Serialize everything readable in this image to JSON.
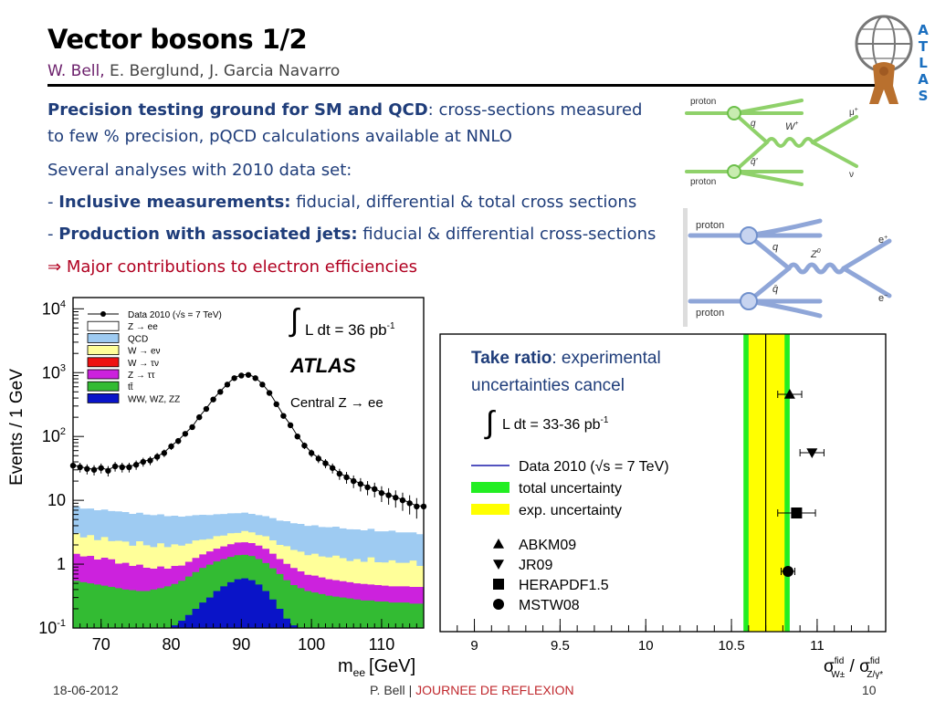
{
  "slide": {
    "title": "Vector bosons 1/2",
    "author_primary": "W. Bell,",
    "author_others": "E. Berglund, J. Garcia Navarro",
    "intro_bold": "Precision testing ground for SM and QCD",
    "intro_rest": ": cross-sections measured",
    "intro_line2": "to few % precision, pQCD calculations available at NNLO",
    "line_several": "Several analyses with 2010 data set:",
    "bullet1_dash": "- ",
    "bullet1_bold": "Inclusive measurements:",
    "bullet1_rest": " fiducial, differential & total cross sections",
    "bullet2_dash": "- ",
    "bullet2_bold": "Production with associated jets:",
    "bullet2_rest": " fiducial & differential cross-sections",
    "arrow_symbol": "⇒",
    "conclusion": "Major contributions to electron efficiencies",
    "footer_date": "18-06-2012",
    "footer_author": "P. Bell",
    "footer_sep": "|",
    "footer_event": "JOURNEE DE REFLEXION",
    "footer_page": "10",
    "logo_letters": [
      "A",
      "T",
      "L",
      "A",
      "S"
    ]
  },
  "diagram_w": {
    "proton_top": "proton",
    "proton_bottom": "proton",
    "quark": "q",
    "antiquark": "q̄'",
    "boson": "W",
    "boson_sup": "+",
    "lepton": "μ",
    "lepton_sup": "+",
    "neutrino": "ν"
  },
  "diagram_z": {
    "proton_top": "proton",
    "proton_bottom": "proton",
    "quark": "q",
    "antiquark": "q̄",
    "boson": "Z",
    "boson_sup": "0",
    "lepton_top": "e",
    "lepton_top_sup": "+",
    "lepton_bottom": "e",
    "lepton_bottom_sup": "−"
  },
  "chart_data": [
    {
      "type": "line",
      "ylabel": "Events / 1 GeV",
      "xlabel": "m",
      "xlabel_sub": "ee",
      "xlabel_unit": "[GeV]",
      "xlim": [
        66,
        116
      ],
      "ylim": [
        0.1,
        15000
      ],
      "log_y": true,
      "x_ticks": [
        "70",
        "80",
        "90",
        "100",
        "110"
      ],
      "x_tick_values": [
        70,
        80,
        90,
        100,
        110
      ],
      "y_ticks": [
        {
          "base": "10",
          "exp": "4",
          "value": 10000
        },
        {
          "base": "10",
          "exp": "3",
          "value": 1000
        },
        {
          "base": "10",
          "exp": "2",
          "value": 100
        },
        {
          "base": "10",
          "exp": "",
          "value": 10
        },
        {
          "base": "1",
          "exp": "",
          "value": 1
        },
        {
          "base": "10",
          "exp": "-1",
          "value": 0.1
        }
      ],
      "legend": [
        {
          "label": "Data 2010 (√s = 7 TeV)",
          "style": "marker"
        },
        {
          "label": "Z → ee",
          "color": "#ffffff"
        },
        {
          "label": "QCD",
          "color": "#9ecbf2"
        },
        {
          "label": "W → eν",
          "color": "#ffff99"
        },
        {
          "label": "W → τν",
          "color": "#ee1111"
        },
        {
          "label": "Z → ττ",
          "color": "#cc22dd"
        },
        {
          "label": "tt̄",
          "color": "#33bb33"
        },
        {
          "label": "WW, WZ, ZZ",
          "color": "#0a14c8"
        }
      ],
      "lumi_label": "L dt = 36 pb",
      "lumi_sup": "-1",
      "experiment": "ATLAS",
      "channel": "Central Z → ee",
      "x": [
        66,
        67,
        68,
        69,
        70,
        71,
        72,
        73,
        74,
        75,
        76,
        77,
        78,
        79,
        80,
        81,
        82,
        83,
        84,
        85,
        86,
        87,
        88,
        89,
        90,
        91,
        92,
        93,
        94,
        95,
        96,
        97,
        98,
        99,
        100,
        101,
        102,
        103,
        104,
        105,
        106,
        107,
        108,
        109,
        110,
        111,
        112,
        113,
        114,
        115,
        116
      ],
      "data_y": [
        35,
        33,
        31,
        30,
        32,
        29,
        34,
        33,
        33,
        36,
        40,
        42,
        48,
        55,
        70,
        85,
        110,
        140,
        200,
        270,
        380,
        500,
        650,
        820,
        900,
        920,
        820,
        650,
        480,
        320,
        210,
        150,
        100,
        72,
        55,
        45,
        38,
        32,
        26,
        23,
        20,
        18,
        16,
        15,
        13,
        12,
        11,
        10,
        9,
        8,
        8
      ],
      "qcd_level": [
        5,
        4.8,
        4.6,
        4.6,
        4.5,
        4.5,
        4.4,
        4.3,
        4.2,
        4.1,
        4.0,
        4.0,
        3.9,
        3.8,
        3.7,
        3.6,
        3.6,
        3.5,
        3.5,
        3.4,
        3.3,
        3.3,
        3.2,
        3.2,
        3.1,
        3.0,
        3.0,
        2.9,
        2.9,
        2.8,
        2.8,
        2.7,
        2.7,
        2.6,
        2.6,
        2.5,
        2.5,
        2.5,
        2.4,
        2.4,
        2.3,
        2.3,
        2.3,
        2.2,
        2.2,
        2.2,
        2.1,
        2.1,
        2.0,
        2.0,
        2.0
      ],
      "wenu_level": [
        1.6,
        1.3,
        1.5,
        1.2,
        1.4,
        1.1,
        1.3,
        1.2,
        1.0,
        1.3,
        1.1,
        1.0,
        1.2,
        1.0,
        1.1,
        1.0,
        1.0,
        1.1,
        1.0,
        0.9,
        1.0,
        0.9,
        1.0,
        0.9,
        1.1,
        1.0,
        0.9,
        1.0,
        0.9,
        0.8,
        0.9,
        0.8,
        0.8,
        0.7,
        0.8,
        0.7,
        0.7,
        0.8,
        0.7,
        0.6,
        0.7,
        0.6,
        0.8,
        0.6,
        0.6,
        0.7,
        0.6,
        0.6,
        0.7,
        0.5,
        0.6
      ],
      "ztautau_level": [
        0.9,
        0.8,
        0.85,
        0.7,
        0.8,
        0.75,
        0.6,
        0.65,
        0.55,
        0.6,
        0.5,
        0.45,
        0.5,
        0.4,
        0.45,
        0.4,
        0.45,
        0.5,
        0.55,
        0.6,
        0.65,
        0.7,
        0.75,
        0.8,
        0.8,
        0.8,
        0.75,
        0.7,
        0.6,
        0.5,
        0.45,
        0.4,
        0.35,
        0.3,
        0.3,
        0.28,
        0.26,
        0.25,
        0.24,
        0.23,
        0.22,
        0.22,
        0.21,
        0.21,
        0.2,
        0.2,
        0.2,
        0.2,
        0.2,
        0.2,
        0.2
      ],
      "ttbar_level": [
        0.45,
        0.42,
        0.4,
        0.38,
        0.36,
        0.34,
        0.32,
        0.3,
        0.29,
        0.28,
        0.28,
        0.3,
        0.32,
        0.35,
        0.38,
        0.42,
        0.48,
        0.55,
        0.62,
        0.68,
        0.72,
        0.75,
        0.78,
        0.8,
        0.8,
        0.78,
        0.72,
        0.66,
        0.58,
        0.5,
        0.42,
        0.36,
        0.32,
        0.28,
        0.26,
        0.24,
        0.22,
        0.21,
        0.2,
        0.19,
        0.18,
        0.17,
        0.17,
        0.16,
        0.16,
        0.15,
        0.15,
        0.15,
        0.14,
        0.14,
        0.14
      ],
      "diboson_level": [
        0.1,
        0.1,
        0.1,
        0.1,
        0.1,
        0.1,
        0.1,
        0.1,
        0.1,
        0.1,
        0.1,
        0.1,
        0.1,
        0.1,
        0.11,
        0.13,
        0.16,
        0.2,
        0.25,
        0.3,
        0.38,
        0.45,
        0.52,
        0.58,
        0.6,
        0.56,
        0.48,
        0.38,
        0.28,
        0.2,
        0.14,
        0.11,
        0.1,
        0.1,
        0.1,
        0.1,
        0.1,
        0.1,
        0.1,
        0.1,
        0.1,
        0.1,
        0.1,
        0.1,
        0.1,
        0.1,
        0.1,
        0.1,
        0.1,
        0.1,
        0.1
      ]
    },
    {
      "type": "scatter",
      "xlim": [
        8.8,
        11.4
      ],
      "x_ticks": [
        "9",
        "9.5",
        "10",
        "10.5",
        "11"
      ],
      "x_tick_values": [
        9,
        9.5,
        10,
        10.5,
        11
      ],
      "xlabel": "σ",
      "xlabel_sup1": "fid",
      "xlabel_sub1": "W±",
      "xlabel_mid": " / σ",
      "xlabel_sup2": "fid",
      "xlabel_sub2": "Z/γ*",
      "take_ratio_bold": "Take ratio",
      "take_ratio_rest": ": experimental",
      "take_ratio_line2": "uncertainties cancel",
      "lumi_label": "L dt = 33-36 pb",
      "lumi_sup": "-1",
      "legend_data": "Data 2010 (√s = 7 TeV)",
      "legend_total": "total uncertainty",
      "legend_exp": "exp. uncertainty",
      "measured": 10.7,
      "total_band": [
        10.57,
        10.84
      ],
      "exp_band": [
        10.6,
        10.81
      ],
      "colors": {
        "total": "#22ee22",
        "exp": "#ffff00",
        "data": "#1a1aaa"
      },
      "predictions": [
        {
          "name": "ABKM09",
          "marker": "triangle-up",
          "value": 10.84,
          "err": 0.07
        },
        {
          "name": "JR09",
          "marker": "triangle-down",
          "value": 10.97,
          "err": 0.07
        },
        {
          "name": "HERAPDF1.5",
          "marker": "square",
          "value": 10.88,
          "err": 0.11
        },
        {
          "name": "MSTW08",
          "marker": "circle",
          "value": 10.83,
          "err": 0.04
        }
      ]
    }
  ]
}
